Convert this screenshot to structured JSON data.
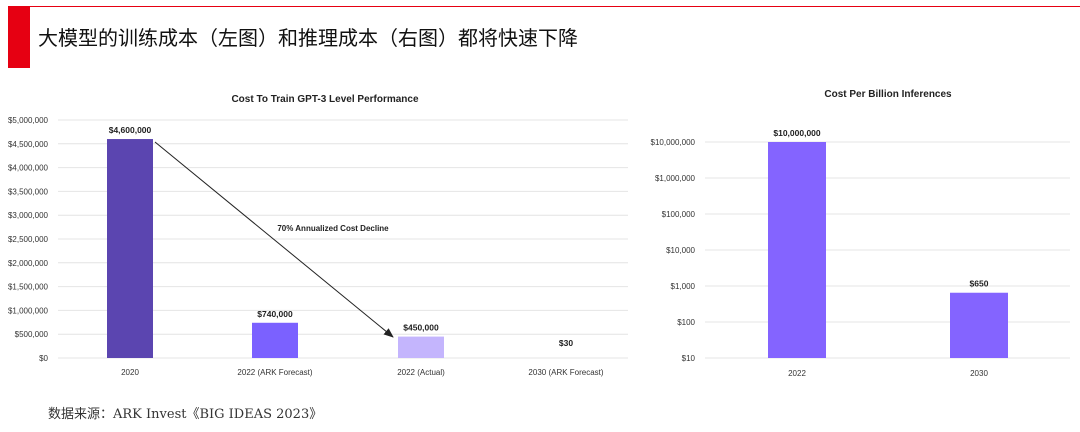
{
  "page": {
    "title": "大模型的训练成本（左图）和推理成本（右图）都将快速下降",
    "footer": "数据来源：ARK Invest《BIG IDEAS 2023》"
  },
  "colors": {
    "accent_red": "#e60012",
    "bar_dark": "#5b45b0",
    "bar_mid": "#7b61ff",
    "bar_light": "#c4b5fd",
    "bar_right": "#8464ff",
    "grid": "#e4e4e4"
  },
  "chart_data": [
    {
      "type": "bar",
      "title": "Cost To Train GPT-3 Level Performance",
      "categories": [
        "2020",
        "2022 (ARK Forecast)",
        "2022 (Actual)",
        "2030 (ARK Forecast)"
      ],
      "values": [
        4600000,
        740000,
        450000,
        30
      ],
      "data_labels": [
        "$4,600,000",
        "$740,000",
        "$450,000",
        "$30"
      ],
      "ylim": [
        0,
        5000000
      ],
      "yticks": [
        0,
        500000,
        1000000,
        1500000,
        2000000,
        2500000,
        3000000,
        3500000,
        4000000,
        4500000,
        5000000
      ],
      "ytick_labels": [
        "$0",
        "$500,000",
        "$1,000,000",
        "$1,500,000",
        "$2,000,000",
        "$2,500,000",
        "$3,000,000",
        "$3,500,000",
        "$4,000,000",
        "$4,500,000",
        "$5,000,000"
      ],
      "bar_colors": [
        "#5b45b0",
        "#7b61ff",
        "#c4b5fd",
        "#7b61ff"
      ],
      "annotation": "70% Annualized Cost Decline",
      "grid": true
    },
    {
      "type": "bar",
      "title": "Cost Per Billion Inferences",
      "categories": [
        "2022",
        "2030"
      ],
      "values": [
        10000000,
        650
      ],
      "data_labels": [
        "$10,000,000",
        "$650"
      ],
      "yscale": "log",
      "ylim": [
        10,
        10000000
      ],
      "yticks": [
        10,
        100,
        1000,
        10000,
        100000,
        1000000,
        10000000
      ],
      "ytick_labels": [
        "$10",
        "$100",
        "$1,000",
        "$10,000",
        "$100,000",
        "$1,000,000",
        "$10,000,000"
      ],
      "bar_colors": [
        "#8464ff",
        "#8464ff"
      ],
      "grid": true
    }
  ]
}
